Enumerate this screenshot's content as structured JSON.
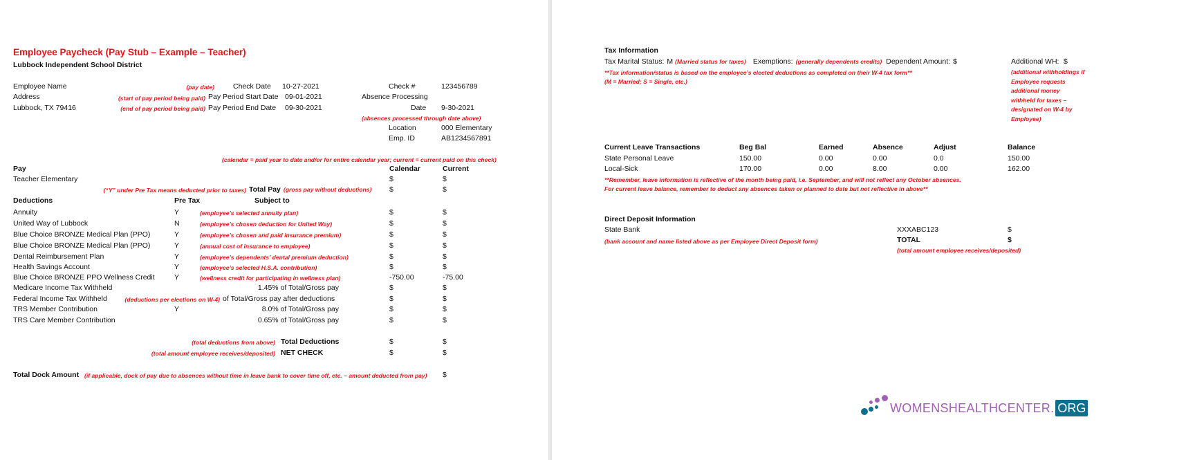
{
  "header": {
    "title": "Employee Paycheck (Pay Stub – Example – Teacher)",
    "district": "Lubbock Independent School District"
  },
  "employee": {
    "name_label": "Employee Name",
    "address_label": "Address",
    "city": "Lubbock, TX  79416",
    "pay_date_note": "(pay date)",
    "check_date_label": "Check Date",
    "check_date": "10-27-2021",
    "start_note": "(start of pay period being paid)",
    "start_label": "Pay Period Start Date",
    "start_date": "09-01-2021",
    "end_note": "(end of pay period being paid)",
    "end_label": "Pay Period End Date",
    "end_date": "09-30-2021",
    "check_no_label": "Check #",
    "check_no": "123456789",
    "absence_label": "Absence Processing",
    "date_label": "Date",
    "absence_date": "9-30-2021",
    "absence_note": "(absences processed through date above)",
    "location_label": "Location",
    "location": "000 Elementary",
    "emp_id_label": "Emp. ID",
    "emp_id": "AB1234567891"
  },
  "pay": {
    "calendar_note": "(calendar = paid year to date and/or for entire calendar year; current = current paid on this check)",
    "header": "Pay",
    "calendar": "Calendar",
    "current": "Current",
    "item": "Teacher Elementary",
    "item_cal": "$",
    "item_cur": "$",
    "pretax_note": "(“Y” under Pre Tax means deducted prior to taxes)",
    "total_label": "Total Pay",
    "total_note": "(gross pay without deductions)",
    "total_cal": "$",
    "total_cur": "$"
  },
  "deductions": {
    "header": "Deductions",
    "pretax": "Pre Tax",
    "subject": "Subject to",
    "rows": [
      {
        "name": "Annuity",
        "pretax": "Y",
        "note": "(employee’s selected annuity plan)",
        "subject": "",
        "cal": "$",
        "cur": "$"
      },
      {
        "name": "United Way of Lubbock",
        "pretax": "N",
        "note": "(employee’s chosen deduction for United Way)",
        "subject": "",
        "cal": "$",
        "cur": "$"
      },
      {
        "name": "Blue Choice BRONZE Medical Plan (PPO)",
        "pretax": "Y",
        "note": "(employee’s chosen and paid insurance premium)",
        "subject": "",
        "cal": "$",
        "cur": "$"
      },
      {
        "name": "Blue Choice BRONZE Medical Plan (PPO)",
        "pretax": "Y",
        "note": "(annual cost of insurance to employee)",
        "subject": "",
        "cal": "$",
        "cur": "$"
      },
      {
        "name": "Dental Reimbursement Plan",
        "pretax": "Y",
        "note": "(employee’s dependents’ dental premium deduction)",
        "subject": "",
        "cal": "$",
        "cur": "$"
      },
      {
        "name": "Health Savings Account",
        "pretax": "Y",
        "note": "(employee’s selected H.S.A. contribution)",
        "subject": "",
        "cal": "$",
        "cur": "$"
      },
      {
        "name": "Blue Choice BRONZE PPO Wellness Credit",
        "pretax": "Y",
        "note": "(wellness credit for participating in wellness plan)",
        "subject": "",
        "cal": "-750.00",
        "cur": "-75.00"
      },
      {
        "name": "Medicare Income Tax Withheld",
        "pretax": "",
        "note": "",
        "subject": "1.45% of Total/Gross pay",
        "cal": "$",
        "cur": "$"
      },
      {
        "name": "Federal Income Tax Withheld",
        "pretax": "",
        "note": "(deductions per elections on W-4)",
        "subject": "of Total/Gross pay after deductions",
        "cal": "$",
        "cur": "$"
      },
      {
        "name": "TRS Member Contribution",
        "pretax": "Y",
        "note": "",
        "subject": "8.0% of Total/Gross pay",
        "cal": "$",
        "cur": "$"
      },
      {
        "name": "TRS Care Member Contribution",
        "pretax": "",
        "note": "",
        "subject": "0.65% of Total/Gross pay",
        "cal": "$",
        "cur": "$"
      }
    ],
    "total_note": "(total deductions from above)",
    "total_label": "Total Deductions",
    "total_cal": "$",
    "total_cur": "$",
    "net_note": "(total amount employee receives/deposited)",
    "net_label": "NET CHECK",
    "net_cal": "$",
    "net_cur": "$",
    "dock_label": "Total Dock Amount",
    "dock_note": "(if applicable, dock of pay due to absences without time in leave bank to cover time off, etc. – amount deducted from pay)",
    "dock_cur": "$"
  },
  "tax": {
    "header": "Tax Information",
    "marital_label": "Tax Marital Status:",
    "marital": "M",
    "marital_note": "(Married status for taxes)",
    "exemptions_label": "Exemptions:",
    "exemptions_note": "(generally dependents credits)",
    "dependent_label": "Dependent Amount:",
    "dependent": "$",
    "addl_label": "Additional WH:",
    "addl": "$",
    "addl_note": [
      "(additional withholdings if",
      "Employee requests",
      "additional money",
      "withheld for taxes –",
      "designated on W-4 by",
      "Employee)"
    ],
    "note1": "**Tax information/status is based on the employee’s elected deductions as completed on their W-4 tax form**",
    "note2": "(M = Married; S = Single, etc.)"
  },
  "leave": {
    "headers": [
      "Current Leave Transactions",
      "Beg Bal",
      "Earned",
      "Absence",
      "Adjust",
      "Balance"
    ],
    "rows": [
      [
        "State Personal Leave",
        "150.00",
        "0.00",
        "0.00",
        "0.0",
        "150.00"
      ],
      [
        "Local-Sick",
        "170.00",
        "0.00",
        "8.00",
        "0.00",
        "162.00"
      ]
    ],
    "note1": "**Remember, leave information is reflective of the month being paid, i.e. September, and will not reflect any October absences.",
    "note2": "For current leave balance, remember to deduct any absences taken or planned to date but not reflective in above**"
  },
  "deposit": {
    "header": "Direct Deposit Information",
    "bank": "State Bank",
    "account": "XXXABC123",
    "amount": "$",
    "note": "(bank account and name listed above as per Employee Direct Deposit form)",
    "total_label": "TOTAL",
    "total": "$",
    "total_note": "(total amount employee receives/deposited)"
  },
  "logo": {
    "text": "WOMENSHEALTHCENTER.",
    "org": "ORG",
    "colors": {
      "purple": "#a160b3",
      "teal": "#0f6e8c"
    }
  }
}
